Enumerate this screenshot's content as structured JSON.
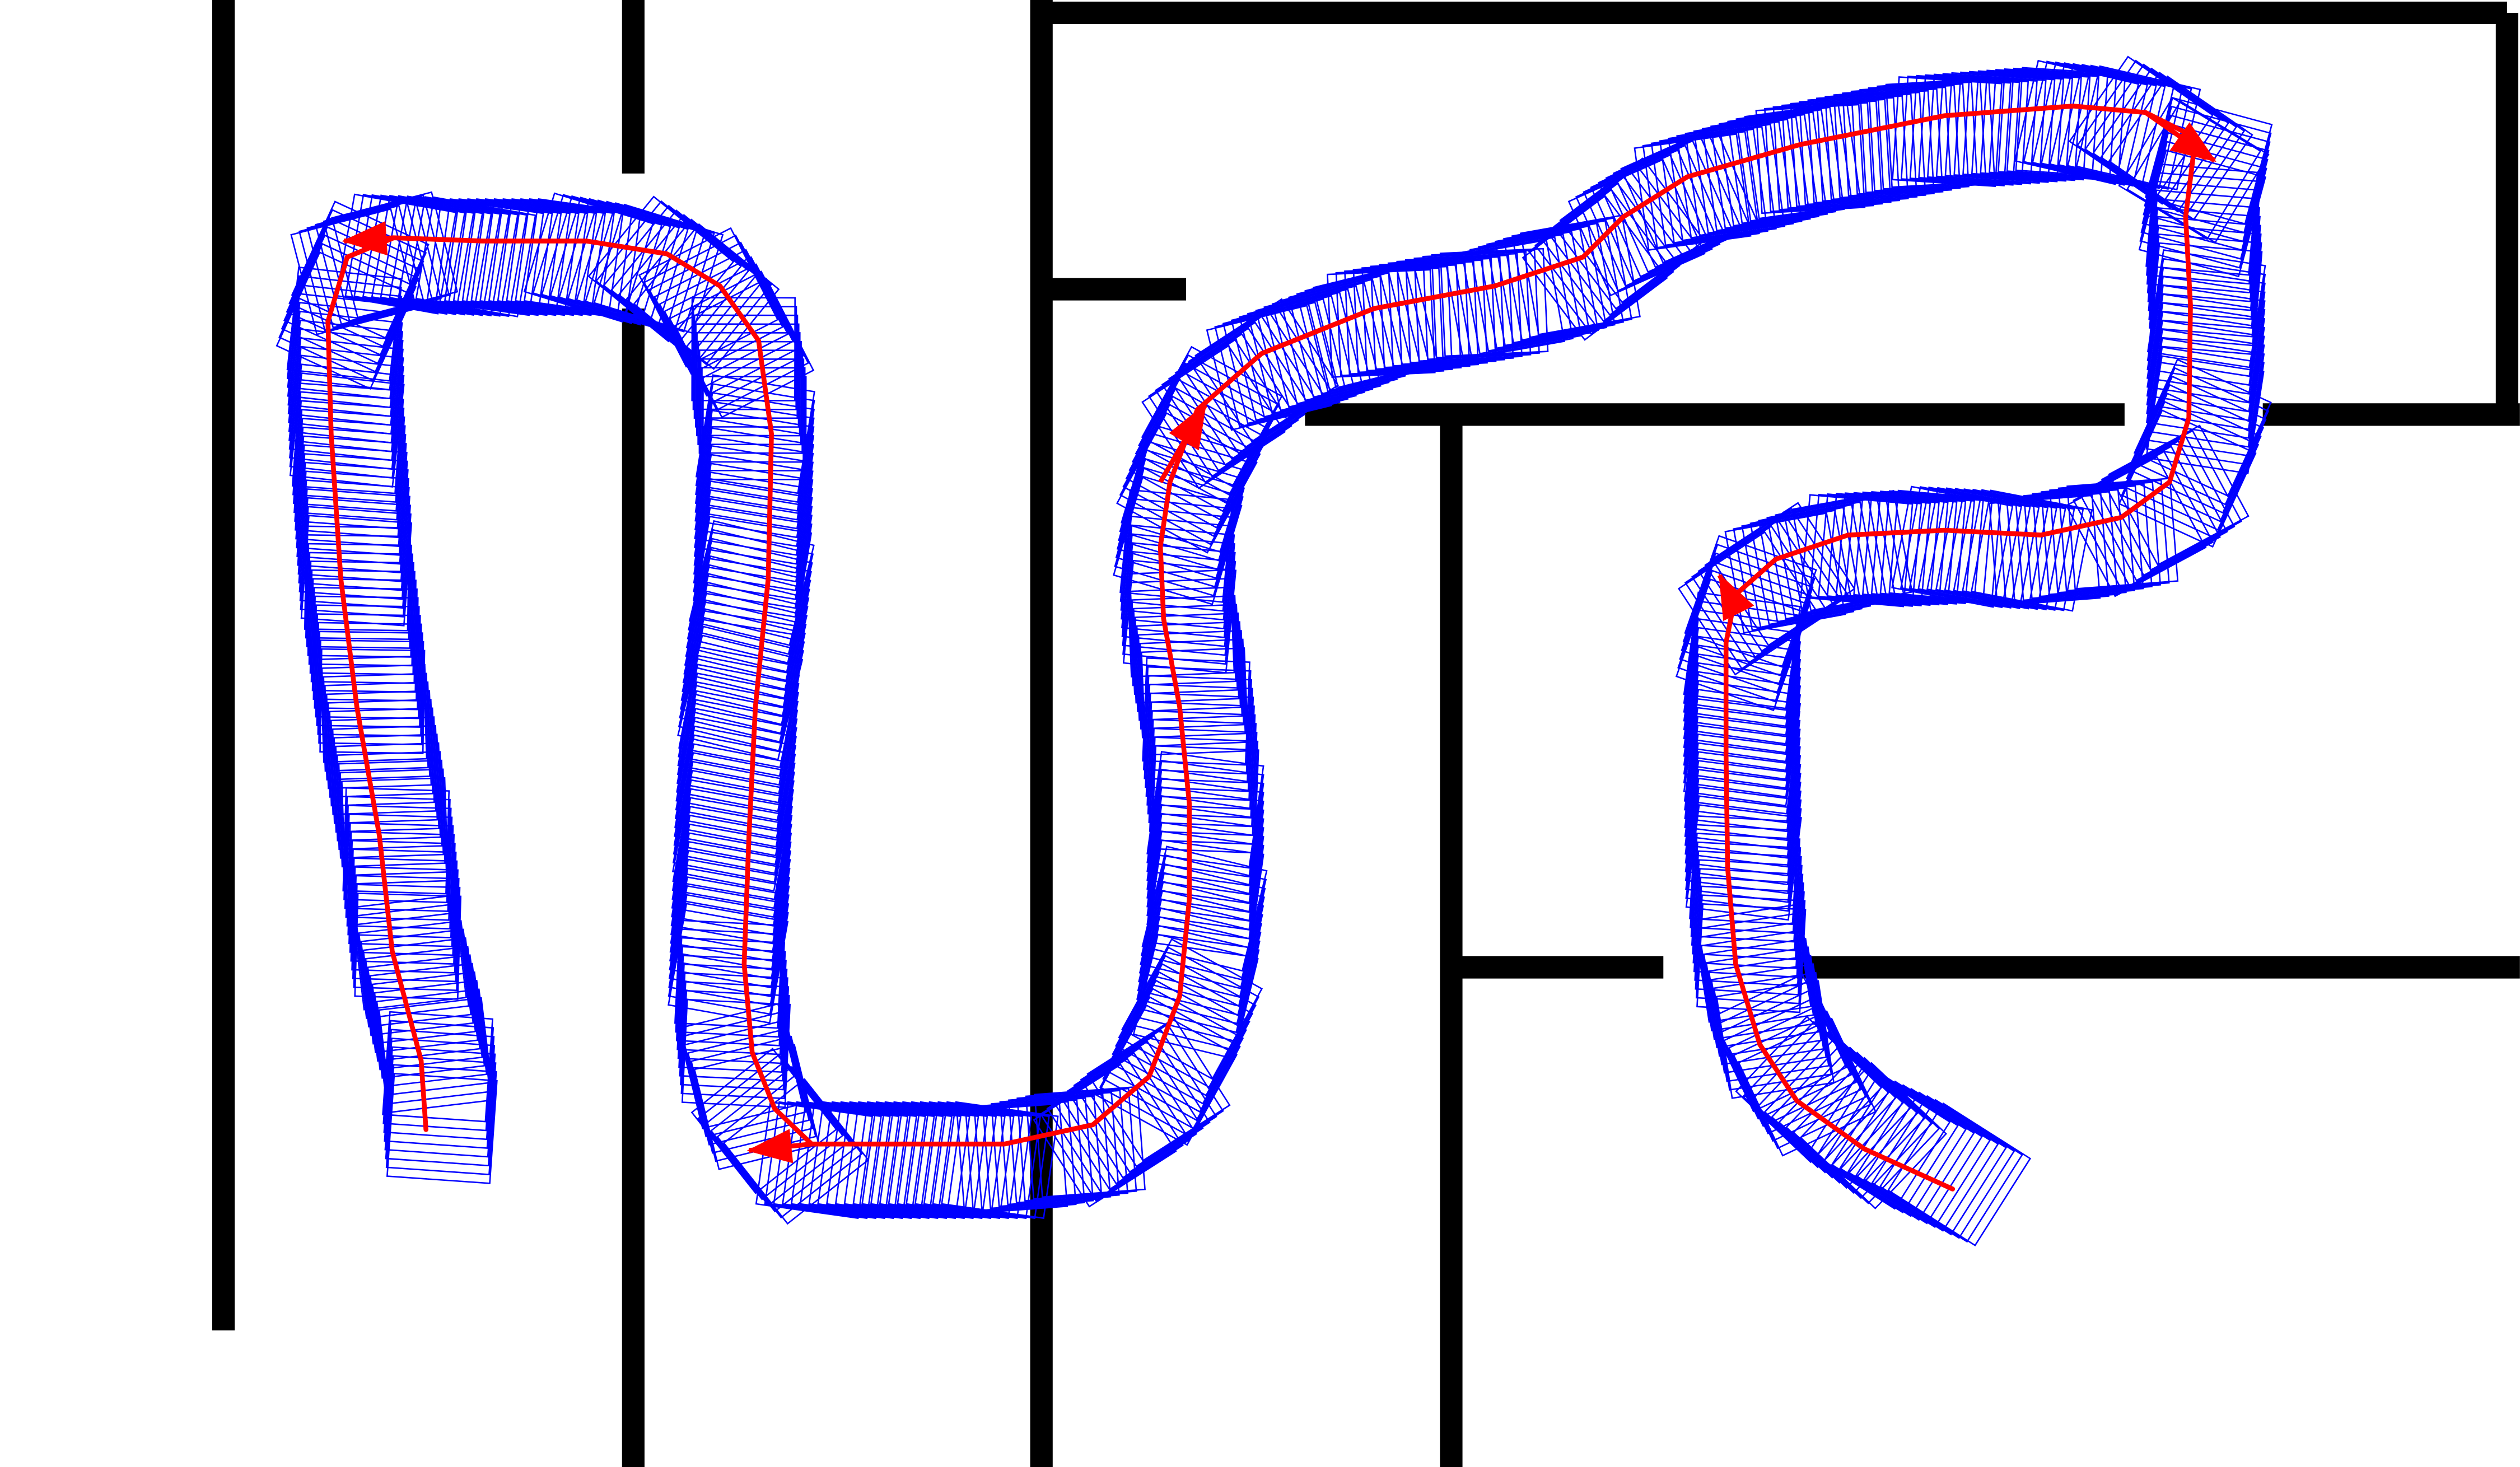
{
  "scene": {
    "type": "maze-path-planning",
    "background_color": "#ffffff",
    "wall_color": "#000000",
    "footprint_color": "#0000ff",
    "path_color": "#ff0000"
  },
  "direction_markers": {
    "icon": "arrowhead-icon",
    "count": 5
  },
  "labels": []
}
